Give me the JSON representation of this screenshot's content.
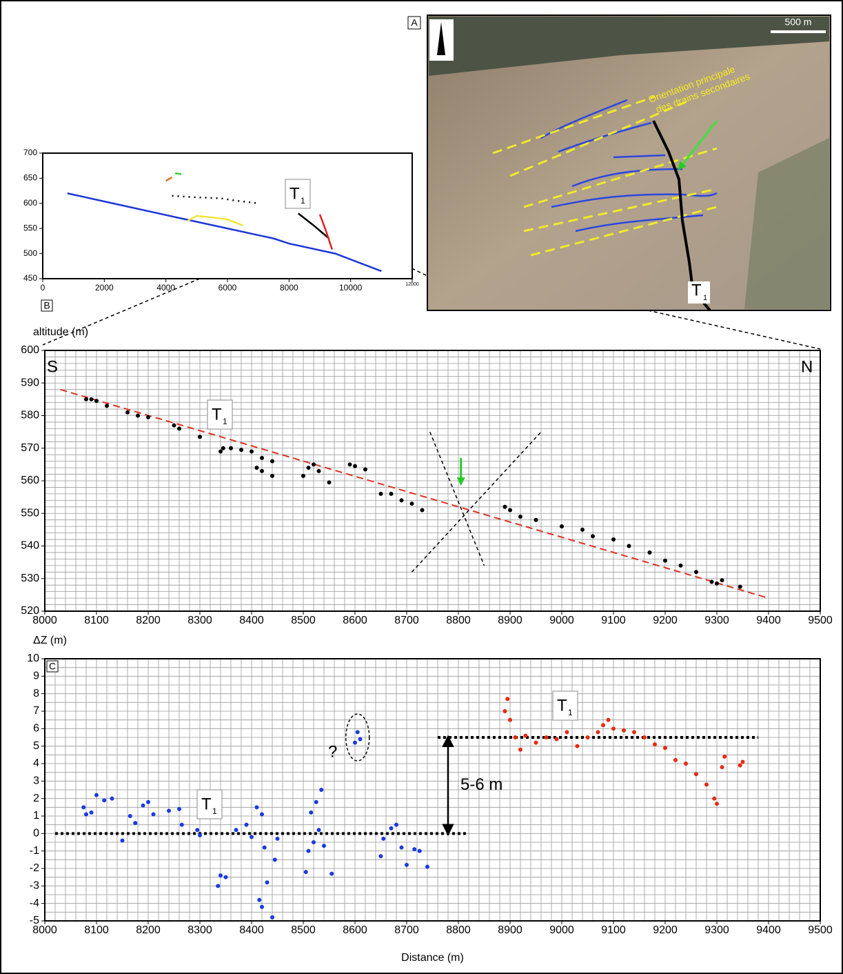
{
  "map": {
    "panel_label": "A",
    "scale_label": "500 m",
    "drain_label": [
      "Orientation principale",
      "des drains secondaires"
    ],
    "fault_label": {
      "text": "T",
      "subscript": "1"
    }
  },
  "chart_data": [
    {
      "type": "line",
      "xlim": [
        0,
        12000
      ],
      "xticks": [
        0,
        2000,
        4000,
        6000,
        8000,
        10000,
        12000
      ],
      "ylim": [
        450,
        700
      ],
      "yticks": [
        450,
        500,
        550,
        600,
        650,
        700
      ],
      "annotations": [
        {
          "text": "T",
          "subscript": "1"
        }
      ],
      "series": [
        {
          "color": "#1c35d8",
          "style": "solid",
          "x": [
            800,
            4500,
            7500,
            8000,
            9500,
            11000
          ],
          "values": [
            620,
            570,
            530,
            520,
            500,
            465
          ]
        },
        {
          "color": "#f2e53a",
          "style": "solid",
          "x": [
            4700,
            5000,
            5500,
            6000,
            6500
          ],
          "values": [
            565,
            575,
            572,
            568,
            556
          ]
        },
        {
          "color": "#000000",
          "style": "dotted",
          "x": [
            4200,
            5000,
            5800,
            6200,
            7000
          ],
          "values": [
            615,
            612,
            610,
            606,
            600
          ]
        },
        {
          "color": "#000000",
          "style": "solid",
          "x": [
            8300,
            8800,
            9300
          ],
          "values": [
            580,
            556,
            530
          ]
        },
        {
          "color": "#e02020",
          "style": "solid",
          "x": [
            9000,
            9200,
            9400
          ],
          "values": [
            578,
            545,
            508
          ]
        },
        {
          "color": "#33cc33",
          "style": "solid",
          "x": [
            4300,
            4500
          ],
          "values": [
            660,
            658
          ]
        },
        {
          "color": "#e06a20",
          "style": "solid",
          "x": [
            4000,
            4200
          ],
          "values": [
            645,
            652
          ]
        }
      ]
    },
    {
      "type": "scatter",
      "panel_label": "B",
      "ylabel": "altitude (m)",
      "xlim": [
        8000,
        9500
      ],
      "xticks": [
        8000,
        8100,
        8200,
        8300,
        8400,
        8500,
        8600,
        8700,
        8800,
        8900,
        9000,
        9100,
        9200,
        9300,
        9400,
        9500
      ],
      "ylim": [
        520,
        600
      ],
      "yticks": [
        520,
        530,
        540,
        550,
        560,
        570,
        580,
        590,
        600
      ],
      "minor_grid": {
        "x": 20,
        "y": 2
      },
      "annotations": [
        {
          "text": "S"
        },
        {
          "text": "N"
        },
        {
          "text": "T",
          "subscript": "1"
        }
      ],
      "fit_line": {
        "color": "#e03020",
        "x": [
          8030,
          9400
        ],
        "values": [
          588,
          524
        ]
      },
      "fault_lines": [
        {
          "x": [
            8745,
            8850
          ],
          "values": [
            575,
            534
          ]
        },
        {
          "x": [
            8710,
            8960
          ],
          "values": [
            532,
            575
          ]
        }
      ],
      "arrow": {
        "color": "#22cc22",
        "x": 8805,
        "values": [
          567,
          559
        ]
      },
      "series": [
        {
          "color": "#000000",
          "x": [
            8080,
            8090,
            8100,
            8120,
            8160,
            8180,
            8200,
            8250,
            8260,
            8300,
            8340,
            8345,
            8360,
            8380,
            8400,
            8420,
            8440,
            8410,
            8420,
            8440,
            8500,
            8510,
            8520,
            8530,
            8550,
            8590,
            8600,
            8620,
            8650,
            8670,
            8690,
            8710,
            8730,
            8890,
            8900,
            8920,
            8950,
            9000,
            9040,
            9060,
            9100,
            9130,
            9170,
            9200,
            9230,
            9260,
            9290,
            9300,
            9310,
            9345
          ],
          "values": [
            585,
            585,
            584.5,
            583,
            581,
            580,
            579.5,
            577,
            576,
            573.5,
            569,
            570,
            570,
            569.5,
            569,
            567,
            566,
            564,
            563,
            561.5,
            561.5,
            564,
            565,
            563,
            559.5,
            565,
            564.5,
            563.5,
            556,
            556,
            554,
            553,
            551,
            552,
            551,
            549,
            548,
            546,
            545,
            543,
            542,
            540,
            538,
            535.5,
            534,
            532,
            529,
            528.5,
            529.5,
            527.5
          ]
        }
      ]
    },
    {
      "type": "scatter",
      "panel_label": "C",
      "ylabel": "ΔZ (m)",
      "xlabel": "Distance (m)",
      "xlim": [
        8000,
        9500
      ],
      "xticks": [
        8000,
        8100,
        8200,
        8300,
        8400,
        8500,
        8600,
        8700,
        8800,
        8900,
        9000,
        9100,
        9200,
        9300,
        9400,
        9500
      ],
      "ylim": [
        -5,
        10
      ],
      "yticks": [
        -5,
        -4,
        -3,
        -2,
        -1,
        0,
        1,
        2,
        3,
        4,
        5,
        6,
        7,
        8,
        9,
        10
      ],
      "minor_grid": {
        "x": 20,
        "y": 0.5
      },
      "annotations": [
        {
          "text": "T",
          "subscript": "1"
        },
        {
          "text": "T",
          "subscript": "1"
        },
        {
          "text": "?"
        }
      ],
      "reference_lines": [
        {
          "x": [
            8020,
            8820
          ],
          "values": [
            0,
            0
          ]
        },
        {
          "x": [
            8760,
            9380
          ],
          "values": [
            5.5,
            5.5
          ]
        }
      ],
      "offset_arrow": {
        "x": 8780,
        "values": [
          0,
          5.5
        ],
        "label": "5-6 m"
      },
      "series": [
        {
          "color": "#1a3ae0",
          "x": [
            8075,
            8080,
            8090,
            8100,
            8115,
            8130,
            8150,
            8165,
            8175,
            8190,
            8200,
            8210,
            8240,
            8260,
            8265,
            8295,
            8300,
            8335,
            8340,
            8350,
            8370,
            8390,
            8400,
            8410,
            8420,
            8425,
            8415,
            8420,
            8430,
            8440,
            8445,
            8450,
            8505,
            8510,
            8515,
            8520,
            8525,
            8530,
            8535,
            8540,
            8555,
            8600,
            8605,
            8610,
            8650,
            8655,
            8670,
            8680,
            8690,
            8700,
            8715,
            8725,
            8740
          ],
          "values": [
            1.5,
            1.1,
            1.2,
            2.2,
            1.9,
            2.0,
            -0.4,
            1.0,
            0.6,
            1.6,
            1.8,
            1.1,
            1.3,
            1.4,
            0.5,
            0.2,
            -0.1,
            -3.0,
            -2.4,
            -2.5,
            0.2,
            0.5,
            -0.2,
            1.5,
            1.1,
            -0.8,
            -3.8,
            -4.2,
            -2.8,
            -4.8,
            -1.5,
            -0.3,
            -2.2,
            -1.0,
            1.2,
            -0.5,
            1.8,
            0.2,
            2.5,
            -0.7,
            -2.3,
            5.2,
            5.8,
            5.4,
            -1.3,
            -0.3,
            0.3,
            0.5,
            -0.8,
            -1.8,
            -0.9,
            -1.0,
            -1.9
          ]
        },
        {
          "color": "#e82a10",
          "x": [
            8890,
            8895,
            8900,
            8910,
            8920,
            8930,
            8950,
            8970,
            8990,
            9010,
            9030,
            9050,
            9070,
            9080,
            9090,
            9100,
            9120,
            9140,
            9160,
            9180,
            9200,
            9220,
            9240,
            9260,
            9280,
            9295,
            9300,
            9310,
            9315,
            9345,
            9350
          ],
          "values": [
            7.0,
            7.7,
            6.5,
            5.5,
            4.8,
            5.6,
            5.2,
            5.5,
            5.4,
            5.8,
            5.0,
            5.5,
            5.8,
            6.2,
            6.5,
            6.0,
            5.9,
            5.8,
            5.5,
            5.1,
            4.9,
            4.2,
            4.0,
            3.4,
            2.8,
            2.0,
            1.7,
            3.8,
            4.4,
            3.9,
            4.1
          ]
        }
      ]
    }
  ]
}
